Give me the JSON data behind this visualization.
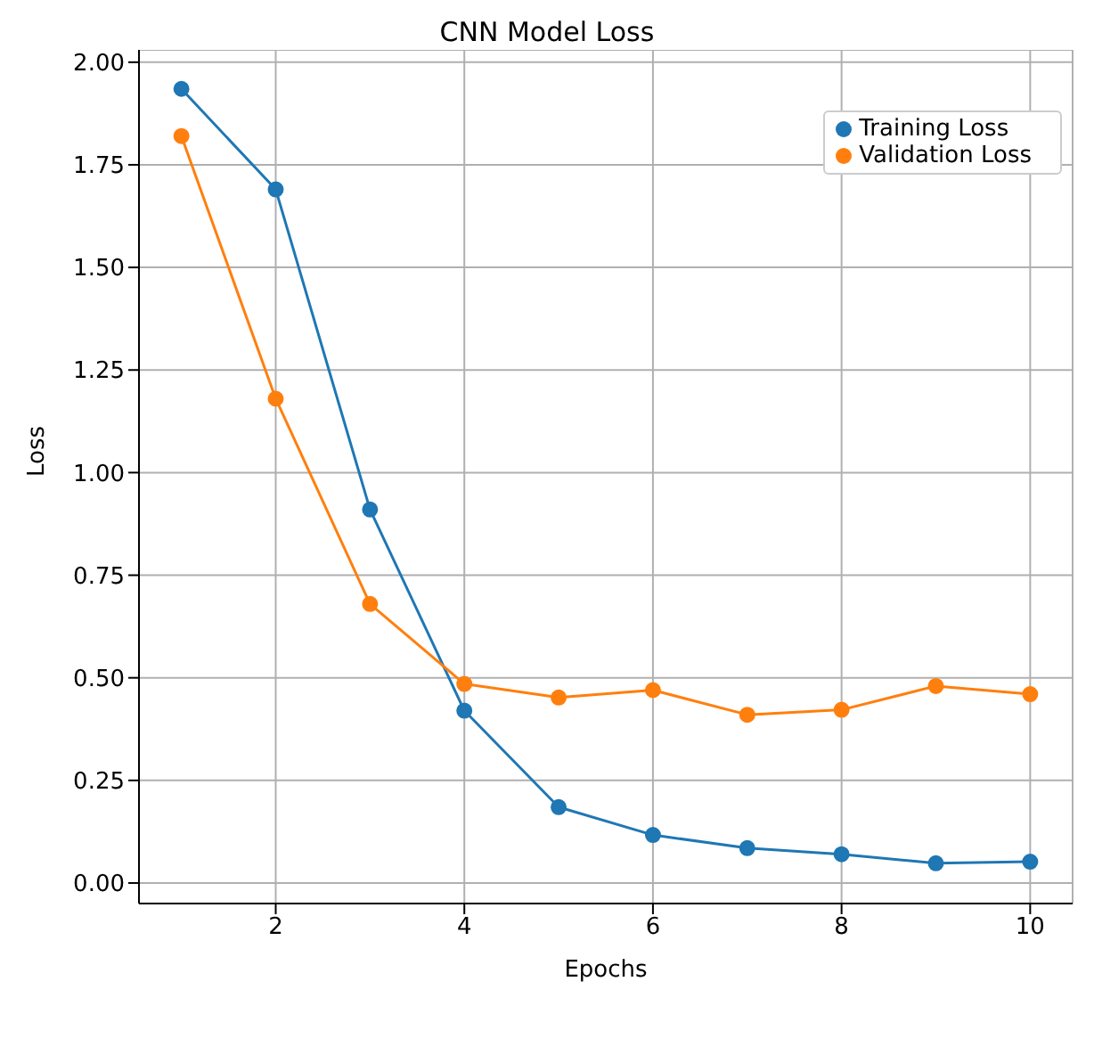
{
  "chart_data": {
    "type": "line",
    "title": "CNN Model Loss",
    "xlabel": "Epochs",
    "ylabel": "Loss",
    "x": [
      1,
      2,
      3,
      4,
      5,
      6,
      7,
      8,
      9,
      10
    ],
    "series": [
      {
        "name": "Training Loss",
        "color": "#1f77b4",
        "values": [
          1.935,
          1.69,
          0.91,
          0.42,
          0.185,
          0.117,
          0.085,
          0.07,
          0.048,
          0.052
        ]
      },
      {
        "name": "Validation Loss",
        "color": "#ff7f0e",
        "values": [
          1.82,
          1.18,
          0.68,
          0.485,
          0.452,
          0.47,
          0.41,
          0.422,
          0.48,
          0.46
        ]
      }
    ],
    "xlim": [
      0.55,
      10.45
    ],
    "xticks": [
      2,
      4,
      6,
      8,
      10
    ],
    "ylim": [
      -0.05,
      2.03
    ],
    "yticks": [
      {
        "value": 0,
        "label": "0.00"
      },
      {
        "value": 0.25,
        "label": "0.25"
      },
      {
        "value": 0.5,
        "label": "0.50"
      },
      {
        "value": 0.75,
        "label": "0.75"
      },
      {
        "value": 1,
        "label": "1.00"
      },
      {
        "value": 1.25,
        "label": "1.25"
      },
      {
        "value": 1.5,
        "label": "1.50"
      },
      {
        "value": 1.75,
        "label": "1.75"
      },
      {
        "value": 2,
        "label": "2.00"
      }
    ],
    "grid": true,
    "legend": "top right",
    "marker": "circle",
    "line_style": "solid"
  }
}
